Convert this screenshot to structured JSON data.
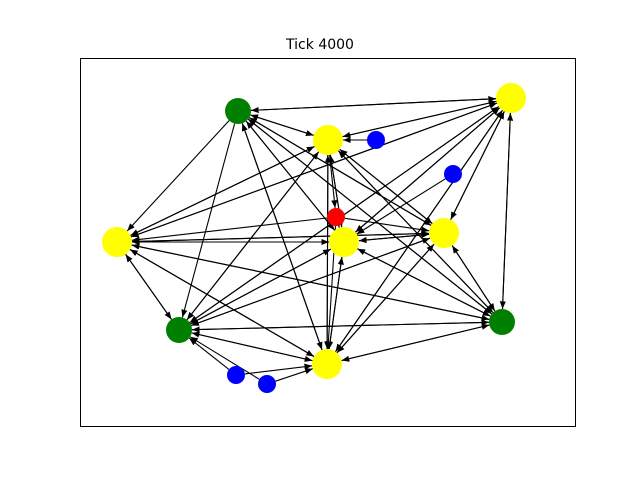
{
  "figure": {
    "title": "Tick 4000"
  },
  "colors": {
    "frame": "#000000",
    "edge": "#000000",
    "green": "#008000",
    "yellow": "#ffff00",
    "red": "#ff0000",
    "blue": "#0000ff"
  },
  "nodes": [
    {
      "id": "g1",
      "color": "green"
    },
    {
      "id": "y1",
      "color": "yellow"
    },
    {
      "id": "y2",
      "color": "yellow"
    },
    {
      "id": "y3",
      "color": "yellow"
    },
    {
      "id": "y4",
      "color": "yellow"
    },
    {
      "id": "y5",
      "color": "yellow"
    },
    {
      "id": "y6",
      "color": "yellow"
    },
    {
      "id": "g2",
      "color": "green"
    },
    {
      "id": "g3",
      "color": "green"
    },
    {
      "id": "r1",
      "color": "red"
    },
    {
      "id": "b1",
      "color": "blue"
    },
    {
      "id": "b2",
      "color": "blue"
    },
    {
      "id": "b3",
      "color": "blue"
    },
    {
      "id": "b4",
      "color": "blue"
    }
  ],
  "edges": [
    [
      "g1",
      "y1"
    ],
    [
      "y1",
      "g1"
    ],
    [
      "g1",
      "y2"
    ],
    [
      "y2",
      "g1"
    ],
    [
      "g1",
      "y3"
    ],
    [
      "y3",
      "g1"
    ],
    [
      "g1",
      "y4"
    ],
    [
      "g1",
      "y5"
    ],
    [
      "y5",
      "g1"
    ],
    [
      "g1",
      "g3"
    ],
    [
      "g3",
      "g1"
    ],
    [
      "g1",
      "y6"
    ],
    [
      "y6",
      "g1"
    ],
    [
      "g1",
      "g2"
    ],
    [
      "y1",
      "y2"
    ],
    [
      "y2",
      "y1"
    ],
    [
      "y1",
      "y3"
    ],
    [
      "y3",
      "y1"
    ],
    [
      "y1",
      "y4"
    ],
    [
      "y4",
      "y1"
    ],
    [
      "y1",
      "y5"
    ],
    [
      "y5",
      "y1"
    ],
    [
      "y1",
      "g2"
    ],
    [
      "g2",
      "y1"
    ],
    [
      "y1",
      "g3"
    ],
    [
      "g3",
      "y1"
    ],
    [
      "y1",
      "y6"
    ],
    [
      "y6",
      "y1"
    ],
    [
      "y2",
      "y3"
    ],
    [
      "y3",
      "y2"
    ],
    [
      "y2",
      "y4"
    ],
    [
      "y4",
      "y2"
    ],
    [
      "y2",
      "y5"
    ],
    [
      "y5",
      "y2"
    ],
    [
      "y2",
      "g2"
    ],
    [
      "g2",
      "y2"
    ],
    [
      "y2",
      "g3"
    ],
    [
      "g3",
      "y2"
    ],
    [
      "y2",
      "y6"
    ],
    [
      "y6",
      "y2"
    ],
    [
      "y2",
      "r1"
    ],
    [
      "y3",
      "y4"
    ],
    [
      "y4",
      "y3"
    ],
    [
      "y3",
      "y5"
    ],
    [
      "y5",
      "y3"
    ],
    [
      "y3",
      "g2"
    ],
    [
      "g2",
      "y3"
    ],
    [
      "y3",
      "g3"
    ],
    [
      "g3",
      "y3"
    ],
    [
      "y3",
      "y6"
    ],
    [
      "y6",
      "y3"
    ],
    [
      "r1",
      "y3"
    ],
    [
      "y4",
      "y5"
    ],
    [
      "y5",
      "y4"
    ],
    [
      "y4",
      "g2"
    ],
    [
      "g2",
      "y4"
    ],
    [
      "y4",
      "g3"
    ],
    [
      "g3",
      "y4"
    ],
    [
      "y4",
      "y6"
    ],
    [
      "y6",
      "y4"
    ],
    [
      "r1",
      "y4"
    ],
    [
      "y5",
      "g2"
    ],
    [
      "g2",
      "y5"
    ],
    [
      "y5",
      "g3"
    ],
    [
      "g3",
      "y5"
    ],
    [
      "y5",
      "y6"
    ],
    [
      "y6",
      "y5"
    ],
    [
      "r1",
      "y5"
    ],
    [
      "g2",
      "g3"
    ],
    [
      "g3",
      "g2"
    ],
    [
      "g2",
      "y6"
    ],
    [
      "y6",
      "g2"
    ],
    [
      "g3",
      "y6"
    ],
    [
      "y6",
      "g3"
    ],
    [
      "b1",
      "y2"
    ],
    [
      "b2",
      "y5"
    ],
    [
      "b3",
      "g2"
    ],
    [
      "b4",
      "g2"
    ],
    [
      "b3",
      "y6"
    ],
    [
      "b4",
      "y6"
    ],
    [
      "r1",
      "y6"
    ]
  ]
}
